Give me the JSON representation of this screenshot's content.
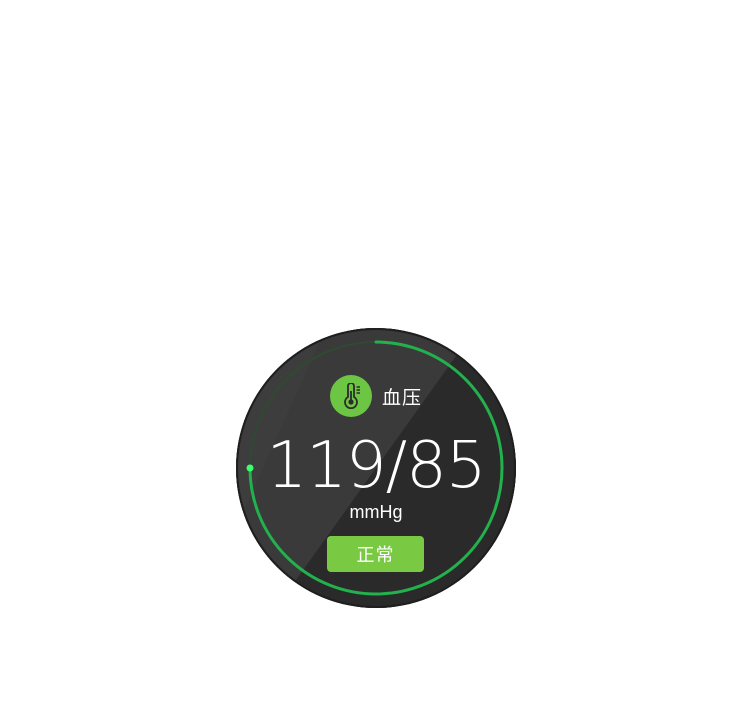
{
  "widget": {
    "title": "血压",
    "icon": "thermometer-icon",
    "value": "119/85",
    "unit": "mmHg",
    "status": "正常"
  },
  "colors": {
    "face": "#2b2b2b",
    "ring": "#22b14c",
    "icon_bg": "#6cc644",
    "status_bg": "#7ac943"
  },
  "progress": {
    "arc_fraction": 0.75
  }
}
